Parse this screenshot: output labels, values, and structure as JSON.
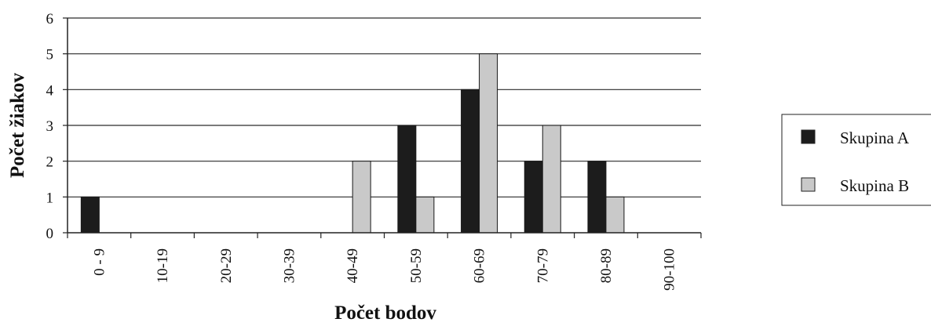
{
  "chart_data": {
    "type": "bar",
    "categories": [
      "0 - 9",
      "10-19",
      "20-29",
      "30-39",
      "40-49",
      "50-59",
      "60-69",
      "70-79",
      "80-89",
      "90-100"
    ],
    "series": [
      {
        "name": "Skupina A",
        "values": [
          1,
          0,
          0,
          0,
          0,
          3,
          4,
          2,
          2,
          0
        ],
        "color": "#1c1c1c"
      },
      {
        "name": "Skupina B",
        "values": [
          0,
          0,
          0,
          0,
          2,
          1,
          5,
          3,
          1,
          0
        ],
        "color": "#c9c9c9"
      }
    ],
    "xlabel": "Počet bodov",
    "ylabel": "Počet žiakov",
    "ylim": [
      0,
      6
    ],
    "yticks": [
      "0",
      "1",
      "2",
      "3",
      "4",
      "5",
      "6"
    ],
    "grid": true,
    "legend_position": "right"
  }
}
